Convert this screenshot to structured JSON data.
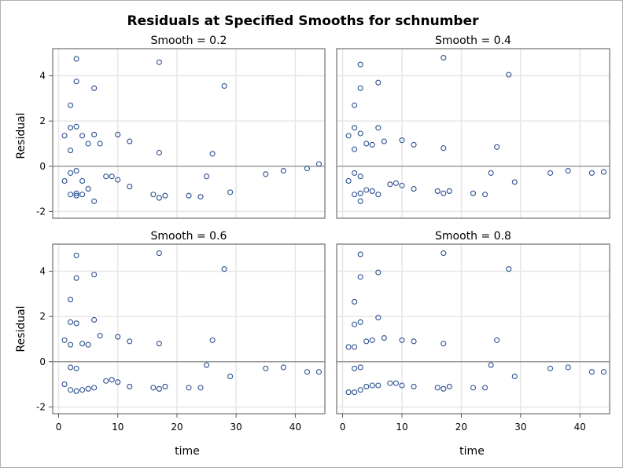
{
  "figure": {
    "title": "Residuals at Specified Smooths for schnumber",
    "xlabel": "time",
    "ylabel": "Residual"
  },
  "colors": {
    "marker": "#2a4f8f",
    "frame": "#8c8c8c",
    "grid": "#e6e6e6",
    "refline": "#9a9a9a",
    "outer_border": "#b0b0b0"
  },
  "chart_data": [
    {
      "type": "scatter",
      "title": "Smooth = 0.2",
      "xlabel": "time",
      "ylabel": "Residual",
      "xlim": [
        -1,
        45
      ],
      "ylim": [
        -2.3,
        5.2
      ],
      "xticks": [
        0,
        10,
        20,
        30,
        40
      ],
      "yticks": [
        -2,
        0,
        2,
        4
      ],
      "grid": true,
      "reference_line_y": 0,
      "points": [
        [
          1,
          1.35
        ],
        [
          1,
          -0.65
        ],
        [
          2,
          2.7
        ],
        [
          2,
          1.7
        ],
        [
          2,
          0.7
        ],
        [
          2,
          -0.3
        ],
        [
          2,
          -1.25
        ],
        [
          3,
          4.75
        ],
        [
          3,
          3.75
        ],
        [
          3,
          1.75
        ],
        [
          3,
          -0.2
        ],
        [
          3,
          -1.3
        ],
        [
          3,
          -1.2
        ],
        [
          4,
          1.35
        ],
        [
          4,
          -0.65
        ],
        [
          4,
          -1.25
        ],
        [
          5,
          1.0
        ],
        [
          5,
          -1.0
        ],
        [
          6,
          3.45
        ],
        [
          6,
          1.4
        ],
        [
          6,
          -1.55
        ],
        [
          7,
          1.0
        ],
        [
          8,
          -0.45
        ],
        [
          9,
          -0.45
        ],
        [
          10,
          1.4
        ],
        [
          10,
          -0.6
        ],
        [
          12,
          1.1
        ],
        [
          12,
          -0.9
        ],
        [
          16,
          -1.25
        ],
        [
          17,
          4.6
        ],
        [
          17,
          0.6
        ],
        [
          17,
          -1.4
        ],
        [
          18,
          -1.3
        ],
        [
          22,
          -1.3
        ],
        [
          24,
          -1.35
        ],
        [
          25,
          -0.45
        ],
        [
          26,
          0.55
        ],
        [
          28,
          3.55
        ],
        [
          29,
          -1.15
        ],
        [
          35,
          -0.35
        ],
        [
          38,
          -0.2
        ],
        [
          42,
          -0.1
        ],
        [
          44,
          0.1
        ]
      ]
    },
    {
      "type": "scatter",
      "title": "Smooth = 0.4",
      "xlabel": "time",
      "ylabel": "Residual",
      "xlim": [
        -1,
        45
      ],
      "ylim": [
        -2.3,
        5.2
      ],
      "xticks": [
        0,
        10,
        20,
        30,
        40
      ],
      "yticks": [
        -2,
        0,
        2,
        4
      ],
      "grid": true,
      "reference_line_y": 0,
      "points": [
        [
          1,
          1.35
        ],
        [
          1,
          -0.65
        ],
        [
          2,
          2.7
        ],
        [
          2,
          1.7
        ],
        [
          2,
          0.75
        ],
        [
          2,
          -0.3
        ],
        [
          2,
          -1.25
        ],
        [
          3,
          4.5
        ],
        [
          3,
          3.45
        ],
        [
          3,
          1.45
        ],
        [
          3,
          -0.45
        ],
        [
          3,
          -1.2
        ],
        [
          3,
          -1.55
        ],
        [
          4,
          1.0
        ],
        [
          4,
          -1.05
        ],
        [
          5,
          0.95
        ],
        [
          5,
          -1.1
        ],
        [
          6,
          3.7
        ],
        [
          6,
          1.7
        ],
        [
          6,
          -1.25
        ],
        [
          7,
          1.1
        ],
        [
          8,
          -0.8
        ],
        [
          9,
          -0.75
        ],
        [
          10,
          1.15
        ],
        [
          10,
          -0.85
        ],
        [
          12,
          0.95
        ],
        [
          12,
          -1.0
        ],
        [
          16,
          -1.1
        ],
        [
          17,
          4.8
        ],
        [
          17,
          0.8
        ],
        [
          17,
          -1.2
        ],
        [
          18,
          -1.1
        ],
        [
          22,
          -1.2
        ],
        [
          24,
          -1.25
        ],
        [
          25,
          -0.3
        ],
        [
          26,
          0.85
        ],
        [
          28,
          4.05
        ],
        [
          29,
          -0.7
        ],
        [
          35,
          -0.3
        ],
        [
          38,
          -0.2
        ],
        [
          42,
          -0.3
        ],
        [
          44,
          -0.25
        ]
      ]
    },
    {
      "type": "scatter",
      "title": "Smooth = 0.6",
      "xlabel": "time",
      "ylabel": "Residual",
      "xlim": [
        -1,
        45
      ],
      "ylim": [
        -2.3,
        5.2
      ],
      "xticks": [
        0,
        10,
        20,
        30,
        40
      ],
      "yticks": [
        -2,
        0,
        2,
        4
      ],
      "grid": true,
      "reference_line_y": 0,
      "points": [
        [
          1,
          0.95
        ],
        [
          1,
          -1.0
        ],
        [
          2,
          2.75
        ],
        [
          2,
          1.75
        ],
        [
          2,
          0.75
        ],
        [
          2,
          -0.25
        ],
        [
          2,
          -1.25
        ],
        [
          3,
          4.7
        ],
        [
          3,
          3.7
        ],
        [
          3,
          1.7
        ],
        [
          3,
          -0.3
        ],
        [
          3,
          -1.3
        ],
        [
          4,
          0.8
        ],
        [
          4,
          -1.25
        ],
        [
          5,
          0.75
        ],
        [
          5,
          -1.2
        ],
        [
          6,
          3.85
        ],
        [
          6,
          1.85
        ],
        [
          6,
          -1.15
        ],
        [
          7,
          1.15
        ],
        [
          8,
          -0.85
        ],
        [
          9,
          -0.8
        ],
        [
          10,
          1.1
        ],
        [
          10,
          -0.9
        ],
        [
          12,
          0.9
        ],
        [
          12,
          -1.1
        ],
        [
          16,
          -1.15
        ],
        [
          17,
          4.8
        ],
        [
          17,
          0.8
        ],
        [
          17,
          -1.2
        ],
        [
          18,
          -1.1
        ],
        [
          22,
          -1.15
        ],
        [
          24,
          -1.15
        ],
        [
          25,
          -0.15
        ],
        [
          26,
          0.95
        ],
        [
          28,
          4.1
        ],
        [
          29,
          -0.65
        ],
        [
          35,
          -0.3
        ],
        [
          38,
          -0.25
        ],
        [
          42,
          -0.45
        ],
        [
          44,
          -0.45
        ]
      ]
    },
    {
      "type": "scatter",
      "title": "Smooth = 0.8",
      "xlabel": "time",
      "ylabel": "Residual",
      "xlim": [
        -1,
        45
      ],
      "ylim": [
        -2.3,
        5.2
      ],
      "xticks": [
        0,
        10,
        20,
        30,
        40
      ],
      "yticks": [
        -2,
        0,
        2,
        4
      ],
      "grid": true,
      "reference_line_y": 0,
      "points": [
        [
          1,
          0.65
        ],
        [
          1,
          -1.35
        ],
        [
          2,
          2.65
        ],
        [
          2,
          1.65
        ],
        [
          2,
          0.65
        ],
        [
          2,
          -0.3
        ],
        [
          2,
          -1.35
        ],
        [
          3,
          4.75
        ],
        [
          3,
          3.75
        ],
        [
          3,
          1.75
        ],
        [
          3,
          -0.25
        ],
        [
          3,
          -1.25
        ],
        [
          4,
          0.9
        ],
        [
          4,
          -1.1
        ],
        [
          5,
          0.95
        ],
        [
          5,
          -1.05
        ],
        [
          6,
          3.95
        ],
        [
          6,
          1.95
        ],
        [
          6,
          -1.05
        ],
        [
          7,
          1.05
        ],
        [
          8,
          -0.95
        ],
        [
          9,
          -0.95
        ],
        [
          10,
          0.95
        ],
        [
          10,
          -1.05
        ],
        [
          12,
          0.9
        ],
        [
          12,
          -1.1
        ],
        [
          16,
          -1.15
        ],
        [
          17,
          4.8
        ],
        [
          17,
          0.8
        ],
        [
          17,
          -1.2
        ],
        [
          18,
          -1.1
        ],
        [
          22,
          -1.15
        ],
        [
          24,
          -1.15
        ],
        [
          25,
          -0.15
        ],
        [
          26,
          0.95
        ],
        [
          28,
          4.1
        ],
        [
          29,
          -0.65
        ],
        [
          35,
          -0.3
        ],
        [
          38,
          -0.25
        ],
        [
          42,
          -0.45
        ],
        [
          44,
          -0.45
        ]
      ]
    }
  ]
}
